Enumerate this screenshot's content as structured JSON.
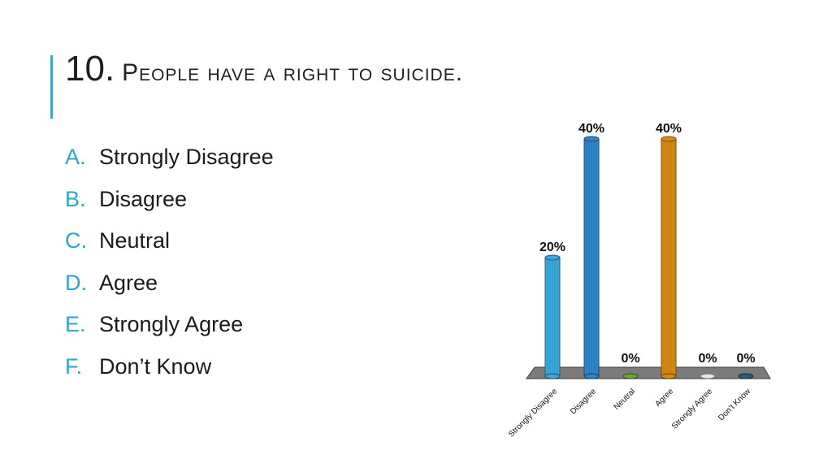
{
  "slide": {
    "title_number": "10.",
    "title_text": "People have a right to suicide."
  },
  "options": [
    {
      "letter": "A.",
      "text": "Strongly Disagree"
    },
    {
      "letter": "B.",
      "text": "Disagree"
    },
    {
      "letter": "C.",
      "text": "Neutral"
    },
    {
      "letter": "D.",
      "text": "Agree"
    },
    {
      "letter": "E.",
      "text": "Strongly Agree"
    },
    {
      "letter": "F.",
      "text": "Don’t Know"
    }
  ],
  "colors": {
    "accent": "#2aa6cf",
    "bars": [
      "#3aa9dd",
      "#2f86cc",
      "#6aa832",
      "#d88a10",
      "#e6e6e6",
      "#2a5f7c"
    ]
  },
  "chart_data": {
    "type": "bar",
    "categories": [
      "Strongly Disagree",
      "Disagree",
      "Neutral",
      "Agree",
      "Strongly Agree",
      "Don’t Know"
    ],
    "values": [
      20,
      40,
      0,
      40,
      0,
      0
    ],
    "data_labels": [
      "20%",
      "40%",
      "0%",
      "40%",
      "0%",
      "0%"
    ],
    "ylim": [
      0,
      40
    ],
    "unit": "%",
    "grid": false,
    "legend": "none"
  }
}
